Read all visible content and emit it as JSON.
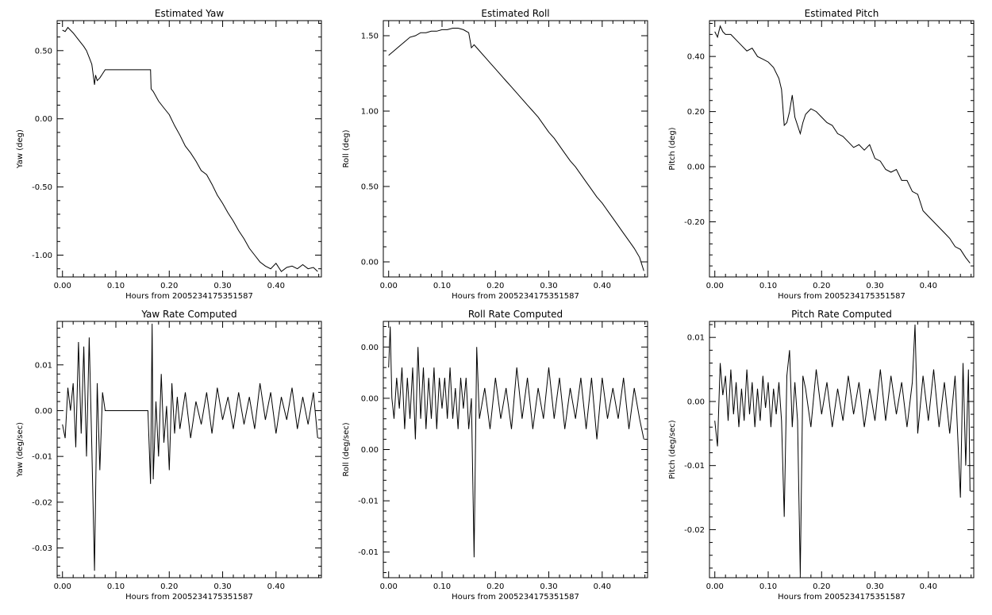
{
  "chart_data": [
    {
      "type": "line",
      "title": "Estimated Yaw",
      "xlabel": "Hours from 2005234175351587",
      "ylabel": "Yaw (deg)",
      "xlim": [
        -0.01,
        0.485
      ],
      "ylim": [
        -1.16,
        0.72
      ],
      "xticks": [
        0,
        0.1,
        0.2,
        0.3,
        0.4
      ],
      "xtick_labels": [
        "0.00",
        "0.10",
        "0.20",
        "0.30",
        "0.40"
      ],
      "yticks": [
        -1.0,
        -0.5,
        0.0,
        0.5
      ],
      "ytick_labels": [
        "-1.00",
        "-0.50",
        "0.00",
        "0.50"
      ],
      "grid": false,
      "x": [
        0.0,
        0.005,
        0.01,
        0.015,
        0.02,
        0.03,
        0.04,
        0.045,
        0.05,
        0.055,
        0.06,
        0.062,
        0.065,
        0.07,
        0.075,
        0.08,
        0.1,
        0.12,
        0.14,
        0.16,
        0.165,
        0.166,
        0.17,
        0.18,
        0.19,
        0.2,
        0.21,
        0.22,
        0.23,
        0.24,
        0.25,
        0.26,
        0.27,
        0.28,
        0.29,
        0.3,
        0.31,
        0.32,
        0.33,
        0.34,
        0.35,
        0.36,
        0.37,
        0.38,
        0.39,
        0.4,
        0.41,
        0.42,
        0.43,
        0.44,
        0.45,
        0.46,
        0.47,
        0.478
      ],
      "y": [
        0.65,
        0.64,
        0.67,
        0.65,
        0.63,
        0.58,
        0.53,
        0.5,
        0.45,
        0.4,
        0.25,
        0.32,
        0.28,
        0.3,
        0.33,
        0.36,
        0.36,
        0.36,
        0.36,
        0.36,
        0.36,
        0.22,
        0.2,
        0.13,
        0.08,
        0.03,
        -0.05,
        -0.12,
        -0.2,
        -0.25,
        -0.31,
        -0.38,
        -0.41,
        -0.48,
        -0.56,
        -0.62,
        -0.69,
        -0.75,
        -0.82,
        -0.88,
        -0.95,
        -1.0,
        -1.05,
        -1.08,
        -1.1,
        -1.06,
        -1.12,
        -1.09,
        -1.08,
        -1.1,
        -1.07,
        -1.1,
        -1.09,
        -1.12
      ]
    },
    {
      "type": "line",
      "title": "Estimated Roll",
      "xlabel": "Hours from 2005234175351587",
      "ylabel": "Roll (deg)",
      "xlim": [
        -0.01,
        0.485
      ],
      "ylim": [
        -0.1,
        1.6
      ],
      "xticks": [
        0,
        0.1,
        0.2,
        0.3,
        0.4
      ],
      "xtick_labels": [
        "0.00",
        "0.10",
        "0.20",
        "0.30",
        "0.40"
      ],
      "yticks": [
        0.0,
        0.5,
        1.0,
        1.5
      ],
      "ytick_labels": [
        "0.00",
        "0.50",
        "1.00",
        "1.50"
      ],
      "grid": false,
      "x": [
        0.0,
        0.01,
        0.02,
        0.03,
        0.04,
        0.05,
        0.06,
        0.07,
        0.08,
        0.09,
        0.1,
        0.11,
        0.12,
        0.13,
        0.14,
        0.15,
        0.155,
        0.16,
        0.17,
        0.18,
        0.19,
        0.2,
        0.21,
        0.22,
        0.23,
        0.24,
        0.25,
        0.26,
        0.27,
        0.28,
        0.29,
        0.3,
        0.31,
        0.32,
        0.33,
        0.34,
        0.35,
        0.36,
        0.37,
        0.38,
        0.39,
        0.4,
        0.41,
        0.42,
        0.43,
        0.44,
        0.45,
        0.46,
        0.47,
        0.478
      ],
      "y": [
        1.37,
        1.4,
        1.43,
        1.46,
        1.49,
        1.5,
        1.52,
        1.52,
        1.53,
        1.53,
        1.54,
        1.54,
        1.55,
        1.55,
        1.54,
        1.52,
        1.42,
        1.44,
        1.4,
        1.36,
        1.32,
        1.28,
        1.24,
        1.2,
        1.16,
        1.12,
        1.08,
        1.04,
        1.0,
        0.96,
        0.91,
        0.86,
        0.82,
        0.77,
        0.72,
        0.67,
        0.63,
        0.58,
        0.53,
        0.48,
        0.43,
        0.39,
        0.34,
        0.29,
        0.24,
        0.19,
        0.14,
        0.09,
        0.03,
        -0.06
      ]
    },
    {
      "type": "line",
      "title": "Estimated Pitch",
      "xlabel": "Hours from 2005234175351587",
      "ylabel": "Pitch (deg)",
      "xlim": [
        -0.01,
        0.485
      ],
      "ylim": [
        -0.4,
        0.53
      ],
      "xticks": [
        0,
        0.1,
        0.2,
        0.3,
        0.4
      ],
      "xtick_labels": [
        "0.00",
        "0.10",
        "0.20",
        "0.30",
        "0.40"
      ],
      "yticks": [
        -0.2,
        0.0,
        0.2,
        0.4
      ],
      "ytick_labels": [
        "-0.20",
        "0.00",
        "0.20",
        "0.40"
      ],
      "grid": false,
      "x": [
        0.0,
        0.005,
        0.01,
        0.015,
        0.02,
        0.03,
        0.04,
        0.05,
        0.06,
        0.07,
        0.08,
        0.09,
        0.1,
        0.11,
        0.12,
        0.125,
        0.13,
        0.135,
        0.14,
        0.145,
        0.15,
        0.16,
        0.165,
        0.17,
        0.18,
        0.19,
        0.2,
        0.21,
        0.22,
        0.23,
        0.24,
        0.25,
        0.26,
        0.27,
        0.28,
        0.29,
        0.3,
        0.31,
        0.32,
        0.33,
        0.34,
        0.35,
        0.36,
        0.37,
        0.38,
        0.39,
        0.4,
        0.41,
        0.42,
        0.43,
        0.44,
        0.45,
        0.46,
        0.47,
        0.478
      ],
      "y": [
        0.49,
        0.47,
        0.51,
        0.49,
        0.48,
        0.48,
        0.46,
        0.44,
        0.42,
        0.43,
        0.4,
        0.39,
        0.38,
        0.36,
        0.32,
        0.28,
        0.15,
        0.16,
        0.2,
        0.26,
        0.18,
        0.12,
        0.16,
        0.19,
        0.21,
        0.2,
        0.18,
        0.16,
        0.15,
        0.12,
        0.11,
        0.09,
        0.07,
        0.08,
        0.06,
        0.08,
        0.03,
        0.02,
        -0.01,
        -0.02,
        -0.01,
        -0.05,
        -0.05,
        -0.09,
        -0.1,
        -0.16,
        -0.18,
        -0.2,
        -0.22,
        -0.24,
        -0.26,
        -0.29,
        -0.3,
        -0.33,
        -0.35
      ]
    },
    {
      "type": "line",
      "title": "Yaw Rate Computed",
      "xlabel": "Hours from 2005234175351587",
      "ylabel": "Yaw (deg/sec)",
      "xlim": [
        -0.01,
        0.485
      ],
      "ylim": [
        -0.0365,
        0.0195
      ],
      "xticks": [
        0,
        0.1,
        0.2,
        0.3,
        0.4
      ],
      "xtick_labels": [
        "0.00",
        "0.10",
        "0.20",
        "0.30",
        "0.40"
      ],
      "yticks": [
        0.01,
        0.0,
        -0.01,
        -0.02,
        -0.03
      ],
      "ytick_labels": [
        "0.01",
        "0.00",
        "-0.01",
        "-0.02",
        "-0.03"
      ],
      "grid": false,
      "x": [
        0.0,
        0.005,
        0.01,
        0.015,
        0.02,
        0.025,
        0.03,
        0.035,
        0.04,
        0.045,
        0.05,
        0.055,
        0.06,
        0.065,
        0.07,
        0.075,
        0.08,
        0.1,
        0.12,
        0.14,
        0.16,
        0.165,
        0.168,
        0.17,
        0.175,
        0.18,
        0.185,
        0.19,
        0.195,
        0.2,
        0.205,
        0.21,
        0.215,
        0.22,
        0.23,
        0.24,
        0.25,
        0.26,
        0.27,
        0.28,
        0.29,
        0.3,
        0.31,
        0.32,
        0.33,
        0.34,
        0.35,
        0.36,
        0.37,
        0.38,
        0.39,
        0.4,
        0.41,
        0.42,
        0.43,
        0.44,
        0.45,
        0.46,
        0.47,
        0.478
      ],
      "y": [
        -0.003,
        -0.006,
        0.005,
        0.0,
        0.006,
        -0.008,
        0.015,
        -0.005,
        0.014,
        -0.01,
        0.016,
        -0.008,
        -0.035,
        0.006,
        -0.013,
        0.004,
        0.0,
        0.0,
        0.0,
        0.0,
        0.0,
        -0.016,
        0.019,
        -0.015,
        0.002,
        -0.01,
        0.008,
        -0.007,
        0.001,
        -0.013,
        0.006,
        -0.005,
        0.003,
        -0.004,
        0.004,
        -0.006,
        0.002,
        -0.003,
        0.004,
        -0.005,
        0.005,
        -0.002,
        0.003,
        -0.004,
        0.004,
        -0.003,
        0.003,
        -0.004,
        0.006,
        -0.002,
        0.004,
        -0.005,
        0.003,
        -0.002,
        0.005,
        -0.004,
        0.003,
        -0.003,
        0.004,
        -0.006
      ]
    },
    {
      "type": "line",
      "title": "Roll Rate Computed",
      "xlabel": "Hours from 2005234175351587",
      "ylabel": "Roll (deg/sec)",
      "xlim": [
        -0.01,
        0.485
      ],
      "ylim": [
        -0.0175,
        0.0075
      ],
      "xticks": [
        0,
        0.1,
        0.2,
        0.3,
        0.4
      ],
      "xtick_labels": [
        "0.00",
        "0.10",
        "0.20",
        "0.30",
        "0.40"
      ],
      "yticks": [
        0.005,
        0.0,
        -0.005,
        -0.01,
        -0.015
      ],
      "ytick_labels": [
        "0.00",
        "0.00",
        "0.00",
        "-0.01",
        "-0.01"
      ],
      "grid": false,
      "x": [
        0.0,
        0.003,
        0.006,
        0.01,
        0.015,
        0.02,
        0.025,
        0.03,
        0.035,
        0.04,
        0.045,
        0.05,
        0.055,
        0.06,
        0.065,
        0.07,
        0.075,
        0.08,
        0.085,
        0.09,
        0.095,
        0.1,
        0.105,
        0.11,
        0.115,
        0.12,
        0.125,
        0.13,
        0.135,
        0.14,
        0.145,
        0.15,
        0.155,
        0.16,
        0.165,
        0.17,
        0.18,
        0.19,
        0.2,
        0.21,
        0.22,
        0.23,
        0.24,
        0.25,
        0.26,
        0.27,
        0.28,
        0.29,
        0.3,
        0.31,
        0.32,
        0.33,
        0.34,
        0.35,
        0.36,
        0.37,
        0.38,
        0.39,
        0.4,
        0.41,
        0.42,
        0.43,
        0.44,
        0.45,
        0.46,
        0.47,
        0.478
      ],
      "y": [
        0.003,
        0.007,
        0.0,
        -0.002,
        0.002,
        -0.001,
        0.003,
        -0.003,
        0.002,
        -0.002,
        0.003,
        -0.004,
        0.005,
        -0.002,
        0.003,
        -0.003,
        0.002,
        -0.002,
        0.003,
        -0.003,
        0.002,
        -0.001,
        0.002,
        -0.002,
        0.003,
        -0.002,
        0.001,
        -0.003,
        0.002,
        -0.001,
        0.002,
        -0.003,
        0.0,
        -0.0155,
        0.005,
        -0.002,
        0.001,
        -0.003,
        0.002,
        -0.002,
        0.001,
        -0.003,
        0.003,
        -0.002,
        0.002,
        -0.003,
        0.001,
        -0.002,
        0.003,
        -0.002,
        0.002,
        -0.003,
        0.001,
        -0.002,
        0.002,
        -0.003,
        0.002,
        -0.004,
        0.002,
        -0.002,
        0.001,
        -0.002,
        0.002,
        -0.003,
        0.001,
        -0.002,
        -0.004
      ]
    },
    {
      "type": "line",
      "title": "Pitch Rate Computed",
      "xlabel": "Hours from 2005234175351587",
      "ylabel": "Pitch (deg/sec)",
      "xlim": [
        -0.01,
        0.485
      ],
      "ylim": [
        -0.0275,
        0.0125
      ],
      "xticks": [
        0,
        0.1,
        0.2,
        0.3,
        0.4
      ],
      "xtick_labels": [
        "0.00",
        "0.10",
        "0.20",
        "0.30",
        "0.40"
      ],
      "yticks": [
        0.01,
        0.0,
        -0.01,
        -0.02
      ],
      "ytick_labels": [
        "0.01",
        "0.00",
        "-0.01",
        "-0.02"
      ],
      "grid": false,
      "x": [
        0.0,
        0.005,
        0.01,
        0.015,
        0.02,
        0.025,
        0.03,
        0.035,
        0.04,
        0.045,
        0.05,
        0.055,
        0.06,
        0.065,
        0.07,
        0.075,
        0.08,
        0.085,
        0.09,
        0.095,
        0.1,
        0.105,
        0.11,
        0.115,
        0.12,
        0.125,
        0.13,
        0.135,
        0.14,
        0.145,
        0.15,
        0.155,
        0.16,
        0.165,
        0.17,
        0.18,
        0.19,
        0.2,
        0.21,
        0.22,
        0.23,
        0.24,
        0.25,
        0.26,
        0.27,
        0.28,
        0.29,
        0.3,
        0.31,
        0.32,
        0.33,
        0.34,
        0.35,
        0.36,
        0.37,
        0.375,
        0.38,
        0.39,
        0.4,
        0.41,
        0.42,
        0.43,
        0.44,
        0.45,
        0.46,
        0.465,
        0.47,
        0.475,
        0.478
      ],
      "y": [
        -0.003,
        -0.007,
        0.006,
        0.001,
        0.004,
        -0.003,
        0.005,
        -0.002,
        0.003,
        -0.004,
        0.002,
        -0.003,
        0.005,
        -0.002,
        0.003,
        -0.004,
        0.002,
        -0.003,
        0.004,
        -0.001,
        0.003,
        -0.004,
        0.002,
        -0.002,
        0.003,
        -0.003,
        -0.018,
        0.004,
        0.008,
        -0.004,
        0.003,
        -0.003,
        -0.027,
        0.004,
        0.002,
        -0.004,
        0.005,
        -0.002,
        0.003,
        -0.004,
        0.002,
        -0.003,
        0.004,
        -0.002,
        0.003,
        -0.004,
        0.002,
        -0.003,
        0.005,
        -0.003,
        0.004,
        -0.002,
        0.003,
        -0.004,
        0.003,
        0.012,
        -0.005,
        0.004,
        -0.003,
        0.005,
        -0.004,
        0.003,
        -0.005,
        0.004,
        -0.015,
        0.006,
        -0.01,
        0.005,
        -0.014
      ]
    }
  ]
}
